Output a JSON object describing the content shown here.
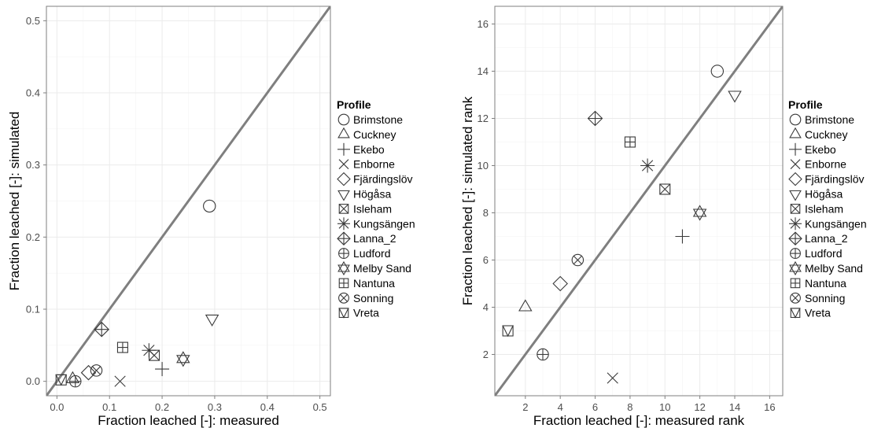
{
  "chart_data": [
    {
      "type": "scatter",
      "xlabel": "Fraction leached [-]: measured",
      "ylabel": "Fraction leached [-]: simulated",
      "xlim": [
        -0.02,
        0.52
      ],
      "ylim": [
        -0.02,
        0.52
      ],
      "xticks": [
        "0.0",
        "0.1",
        "0.2",
        "0.3",
        "0.4",
        "0.5"
      ],
      "yticks": [
        "0.0",
        "0.1",
        "0.2",
        "0.3",
        "0.4",
        "0.5"
      ],
      "grid": true,
      "reference_line": "1:1",
      "points": [
        {
          "profile": "Brimstone",
          "x": 0.29,
          "y": 0.243
        },
        {
          "profile": "Cuckney",
          "x": 0.03,
          "y": 0.003
        },
        {
          "profile": "Ekebo",
          "x": 0.2,
          "y": 0.017
        },
        {
          "profile": "Enborne",
          "x": 0.12,
          "y": 0.0
        },
        {
          "profile": "Fjärdingslöv",
          "x": 0.06,
          "y": 0.012
        },
        {
          "profile": "Högåsa",
          "x": 0.295,
          "y": 0.087
        },
        {
          "profile": "Isleham",
          "x": 0.185,
          "y": 0.036
        },
        {
          "profile": "Kungsängen",
          "x": 0.175,
          "y": 0.043
        },
        {
          "profile": "Lanna_2",
          "x": 0.085,
          "y": 0.072
        },
        {
          "profile": "Ludford",
          "x": 0.035,
          "y": 0.0
        },
        {
          "profile": "Melby Sand",
          "x": 0.24,
          "y": 0.031
        },
        {
          "profile": "Nantuna",
          "x": 0.125,
          "y": 0.047
        },
        {
          "profile": "Sonning",
          "x": 0.075,
          "y": 0.015
        },
        {
          "profile": "Vreta",
          "x": 0.008,
          "y": 0.002
        }
      ]
    },
    {
      "type": "scatter",
      "xlabel": "Fraction leached [-]: measured rank",
      "ylabel": "Fraction leached [-]: simulated rank",
      "xlim": [
        0.25,
        16.75
      ],
      "ylim": [
        0.25,
        16.75
      ],
      "xticks": [
        "2",
        "4",
        "6",
        "8",
        "10",
        "12",
        "14",
        "16"
      ],
      "yticks": [
        "2",
        "4",
        "6",
        "8",
        "10",
        "12",
        "14",
        "16"
      ],
      "grid": true,
      "reference_line": "1:1",
      "points": [
        {
          "profile": "Brimstone",
          "x": 13,
          "y": 14
        },
        {
          "profile": "Cuckney",
          "x": 2,
          "y": 4
        },
        {
          "profile": "Ekebo",
          "x": 11,
          "y": 7
        },
        {
          "profile": "Enborne",
          "x": 7,
          "y": 1
        },
        {
          "profile": "Fjärdingslöv",
          "x": 4,
          "y": 5
        },
        {
          "profile": "Högåsa",
          "x": 14,
          "y": 13
        },
        {
          "profile": "Isleham",
          "x": 10,
          "y": 9
        },
        {
          "profile": "Kungsängen",
          "x": 9,
          "y": 10
        },
        {
          "profile": "Lanna_2",
          "x": 6,
          "y": 12
        },
        {
          "profile": "Ludford",
          "x": 3,
          "y": 2
        },
        {
          "profile": "Melby Sand",
          "x": 12,
          "y": 8
        },
        {
          "profile": "Nantuna",
          "x": 8,
          "y": 11
        },
        {
          "profile": "Sonning",
          "x": 5,
          "y": 6
        },
        {
          "profile": "Vreta",
          "x": 1,
          "y": 3
        }
      ]
    }
  ],
  "legend": {
    "title": "Profile",
    "placement": "right",
    "items": [
      {
        "label": "Brimstone",
        "shape": "circle"
      },
      {
        "label": "Cuckney",
        "shape": "triangle"
      },
      {
        "label": "Ekebo",
        "shape": "plus"
      },
      {
        "label": "Enborne",
        "shape": "cross"
      },
      {
        "label": "Fjärdingslöv",
        "shape": "diamond"
      },
      {
        "label": "Högåsa",
        "shape": "triangle-down"
      },
      {
        "label": "Isleham",
        "shape": "square-cross"
      },
      {
        "label": "Kungsängen",
        "shape": "asterisk"
      },
      {
        "label": "Lanna_2",
        "shape": "diamond-plus"
      },
      {
        "label": "Ludford",
        "shape": "circle-plus"
      },
      {
        "label": "Melby Sand",
        "shape": "star-of-david"
      },
      {
        "label": "Nantuna",
        "shape": "square-plus"
      },
      {
        "label": "Sonning",
        "shape": "circle-cross"
      },
      {
        "label": "Vreta",
        "shape": "square-triangle"
      }
    ]
  },
  "colors": {
    "marker": "#3a3a3a",
    "reference_line": "#7f7f7f",
    "grid": "#ebebeb",
    "panel_border": "#7f7f7f"
  }
}
